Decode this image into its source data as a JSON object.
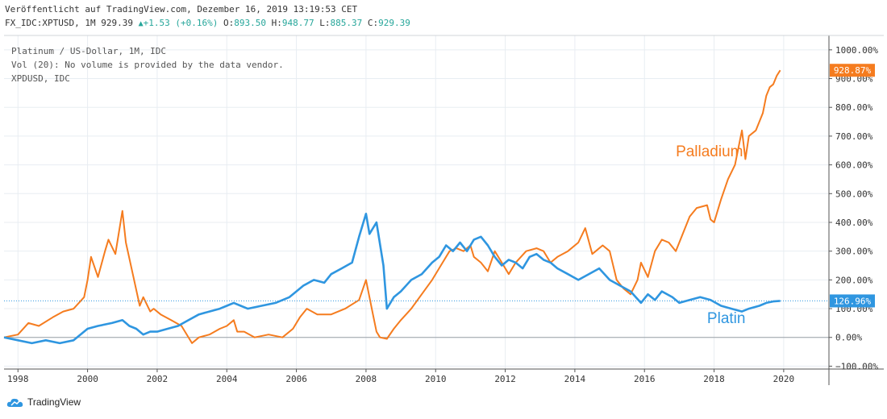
{
  "header": {
    "published": "Veröffentlicht auf TradingView.com, Dezember 16, 2019 13:19:53 CET",
    "symbol": "FX_IDC:XPTUSD, 1M",
    "last": "929.39",
    "change": "+1.53 (+0.16%)",
    "o_label": "O:",
    "o_value": "893.50",
    "h_label": "H:",
    "h_value": "948.77",
    "l_label": "L:",
    "l_value": "885.37",
    "c_label": "C:",
    "c_value": "929.39"
  },
  "legend": {
    "line1": "Platinum / US-Dollar, 1M, IDC",
    "line2": "Vol (20): No volume is provided by the data vendor.",
    "line3": "XPDUSD, IDC"
  },
  "footer": {
    "brand": "TradingView"
  },
  "colors": {
    "palladium": "#f57c1f",
    "platinum": "#2f96e0",
    "grid": "#e8edf2",
    "axis": "#555555"
  },
  "chart_data": {
    "type": "line",
    "title": "Platinum / US-Dollar, 1M, IDC",
    "xlabel": "",
    "ylabel": "",
    "xlim": [
      1997.6,
      2021.3
    ],
    "ylim": [
      -110,
      1050
    ],
    "x_ticks": [
      1998,
      2000,
      2002,
      2004,
      2006,
      2008,
      2010,
      2012,
      2014,
      2016,
      2018,
      2020
    ],
    "y_ticks": [
      -100,
      0,
      100,
      200,
      300,
      400,
      500,
      600,
      700,
      800,
      900,
      1000
    ],
    "y_tick_labels": [
      "−100.00%",
      "0.00%",
      "100.00%",
      "200.00%",
      "300.00%",
      "400.00%",
      "500.00%",
      "600.00%",
      "700.00%",
      "800.00%",
      "900.00%",
      "1000.00%"
    ],
    "last_value_labels": [
      {
        "series": "Palladium",
        "value": 928.87,
        "text": "928.87%"
      },
      {
        "series": "Platin",
        "value": 126.96,
        "text": "126.96%"
      }
    ],
    "annotations": [
      {
        "text": "Palladium",
        "series": "Palladium",
        "x": 2016.9,
        "y": 630
      },
      {
        "text": "Platin",
        "series": "Platin",
        "x": 2017.8,
        "y": 50
      }
    ],
    "series": [
      {
        "name": "Palladium",
        "x": [
          1997.6,
          1998.0,
          1998.3,
          1998.6,
          1999.0,
          1999.3,
          1999.6,
          1999.9,
          2000.0,
          2000.1,
          2000.3,
          2000.5,
          2000.6,
          2000.8,
          2001.0,
          2001.1,
          2001.3,
          2001.5,
          2001.6,
          2001.8,
          2001.9,
          2002.1,
          2002.4,
          2002.7,
          2003.0,
          2003.2,
          2003.5,
          2003.8,
          2004.0,
          2004.2,
          2004.3,
          2004.5,
          2004.8,
          2005.2,
          2005.6,
          2005.9,
          2006.1,
          2006.3,
          2006.6,
          2007.0,
          2007.4,
          2007.8,
          2008.0,
          2008.1,
          2008.2,
          2008.3,
          2008.4,
          2008.6,
          2008.8,
          2009.0,
          2009.3,
          2009.6,
          2009.9,
          2010.2,
          2010.4,
          2010.6,
          2010.8,
          2011.0,
          2011.1,
          2011.3,
          2011.5,
          2011.7,
          2011.9,
          2012.1,
          2012.3,
          2012.6,
          2012.9,
          2013.1,
          2013.3,
          2013.5,
          2013.8,
          2014.1,
          2014.3,
          2014.5,
          2014.6,
          2014.8,
          2015.0,
          2015.2,
          2015.4,
          2015.6,
          2015.8,
          2015.9,
          2016.1,
          2016.3,
          2016.5,
          2016.7,
          2016.9,
          2017.1,
          2017.3,
          2017.5,
          2017.8,
          2017.9,
          2018.0,
          2018.2,
          2018.4,
          2018.6,
          2018.8,
          2018.9,
          2019.0,
          2019.2,
          2019.4,
          2019.5,
          2019.6,
          2019.7,
          2019.8,
          2019.9
        ],
        "values": [
          0,
          10,
          50,
          40,
          70,
          90,
          100,
          140,
          200,
          280,
          210,
          300,
          340,
          290,
          440,
          330,
          220,
          110,
          140,
          90,
          100,
          80,
          60,
          40,
          -20,
          0,
          10,
          30,
          40,
          60,
          20,
          20,
          0,
          10,
          0,
          30,
          70,
          100,
          80,
          80,
          100,
          130,
          200,
          140,
          80,
          20,
          0,
          -5,
          30,
          60,
          100,
          150,
          200,
          260,
          300,
          310,
          300,
          320,
          280,
          260,
          230,
          300,
          260,
          220,
          260,
          300,
          310,
          300,
          260,
          280,
          300,
          330,
          380,
          290,
          300,
          320,
          300,
          200,
          170,
          150,
          200,
          260,
          210,
          300,
          340,
          330,
          300,
          360,
          420,
          450,
          460,
          410,
          400,
          480,
          550,
          600,
          720,
          620,
          700,
          720,
          780,
          840,
          870,
          880,
          910,
          928.87
        ]
      },
      {
        "name": "Platin",
        "x": [
          1997.6,
          1998.0,
          1998.4,
          1998.8,
          1999.2,
          1999.6,
          2000.0,
          2000.3,
          2000.7,
          2001.0,
          2001.2,
          2001.4,
          2001.6,
          2001.8,
          2002.0,
          2002.3,
          2002.6,
          2002.9,
          2003.2,
          2003.5,
          2003.8,
          2004.0,
          2004.2,
          2004.4,
          2004.6,
          2005.0,
          2005.4,
          2005.8,
          2006.0,
          2006.2,
          2006.5,
          2006.8,
          2007.0,
          2007.3,
          2007.6,
          2007.8,
          2008.0,
          2008.1,
          2008.3,
          2008.5,
          2008.6,
          2008.8,
          2009.0,
          2009.3,
          2009.6,
          2009.9,
          2010.1,
          2010.3,
          2010.5,
          2010.7,
          2010.9,
          2011.1,
          2011.3,
          2011.5,
          2011.7,
          2011.9,
          2012.1,
          2012.3,
          2012.5,
          2012.7,
          2012.9,
          2013.1,
          2013.3,
          2013.5,
          2013.8,
          2014.1,
          2014.4,
          2014.7,
          2015.0,
          2015.3,
          2015.6,
          2015.9,
          2016.1,
          2016.3,
          2016.5,
          2016.8,
          2017.0,
          2017.3,
          2017.6,
          2017.9,
          2018.2,
          2018.5,
          2018.8,
          2019.0,
          2019.3,
          2019.5,
          2019.7,
          2019.9
        ],
        "values": [
          0,
          -10,
          -20,
          -10,
          -20,
          -10,
          30,
          40,
          50,
          60,
          40,
          30,
          10,
          20,
          20,
          30,
          40,
          60,
          80,
          90,
          100,
          110,
          120,
          110,
          100,
          110,
          120,
          140,
          160,
          180,
          200,
          190,
          220,
          240,
          260,
          350,
          430,
          360,
          400,
          250,
          100,
          140,
          160,
          200,
          220,
          260,
          280,
          320,
          300,
          330,
          300,
          340,
          350,
          320,
          280,
          250,
          270,
          260,
          240,
          280,
          290,
          270,
          260,
          240,
          220,
          200,
          220,
          240,
          200,
          180,
          160,
          120,
          150,
          130,
          160,
          140,
          120,
          130,
          140,
          130,
          110,
          100,
          90,
          100,
          110,
          120,
          125,
          126.96
        ]
      }
    ]
  }
}
